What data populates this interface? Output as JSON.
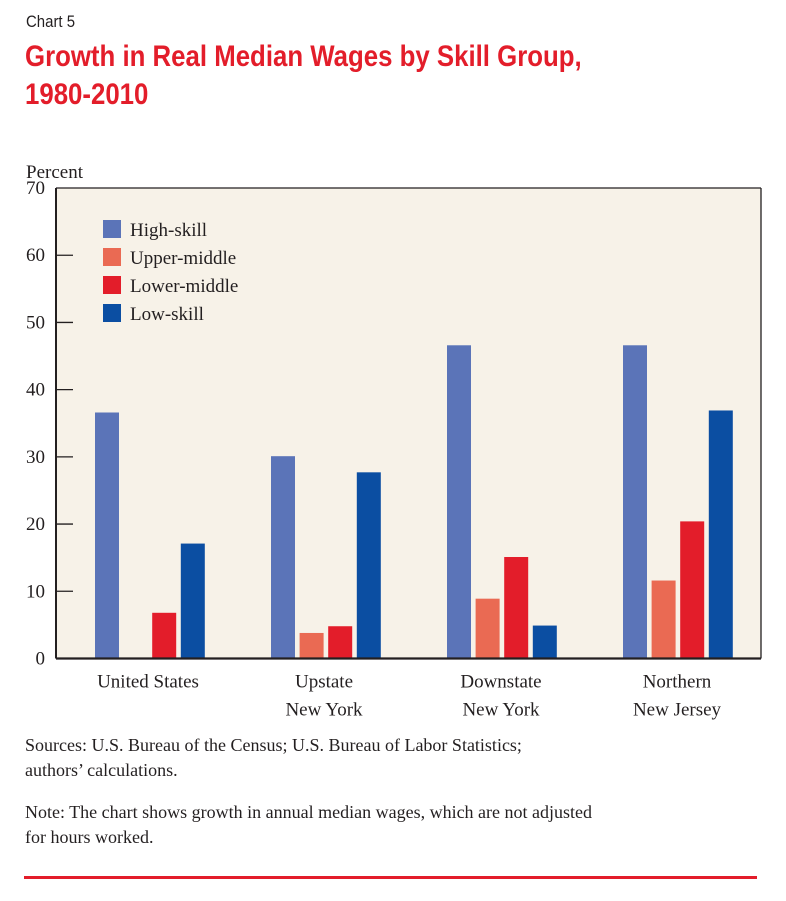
{
  "header": {
    "chart_number": "Chart 5",
    "title_line1": "Growth in Real Median Wages by Skill Group,",
    "title_line2": "1980-2010"
  },
  "footer": {
    "sources_line1": "Sources: U.S. Bureau of the Census; U.S. Bureau of Labor Statistics;",
    "sources_line2": "authors’ calculations.",
    "note_line1": "Note: The chart shows growth in annual median wages, which are not adjusted",
    "note_line2": "for hours worked."
  },
  "colors": {
    "plot_background": "#f7f2e8",
    "accent_red": "#e31d2a"
  },
  "chart_data": {
    "type": "bar",
    "title": "Growth in Real Median Wages by Skill Group, 1980-2010",
    "xlabel": "",
    "ylabel": "Percent",
    "ylim": [
      0,
      70
    ],
    "yticks": [
      0,
      10,
      20,
      30,
      40,
      50,
      60,
      70
    ],
    "grid": false,
    "legend_position": "top-left",
    "categories": [
      [
        "United States"
      ],
      [
        "Upstate",
        "New York"
      ],
      [
        "Downstate",
        "New York"
      ],
      [
        "Northern",
        "New Jersey"
      ]
    ],
    "series": [
      {
        "name": "High-skill",
        "color": "#5b74b8",
        "values": [
          36.6,
          30.1,
          46.6,
          46.6
        ]
      },
      {
        "name": "Upper-middle",
        "color": "#ea6a53",
        "values": [
          0,
          3.8,
          8.9,
          11.6
        ]
      },
      {
        "name": "Lower-middle",
        "color": "#e31d2a",
        "values": [
          6.8,
          4.8,
          15.1,
          20.4
        ]
      },
      {
        "name": "Low-skill",
        "color": "#0b4ea2",
        "values": [
          17.1,
          27.7,
          4.9,
          36.9
        ]
      }
    ]
  }
}
